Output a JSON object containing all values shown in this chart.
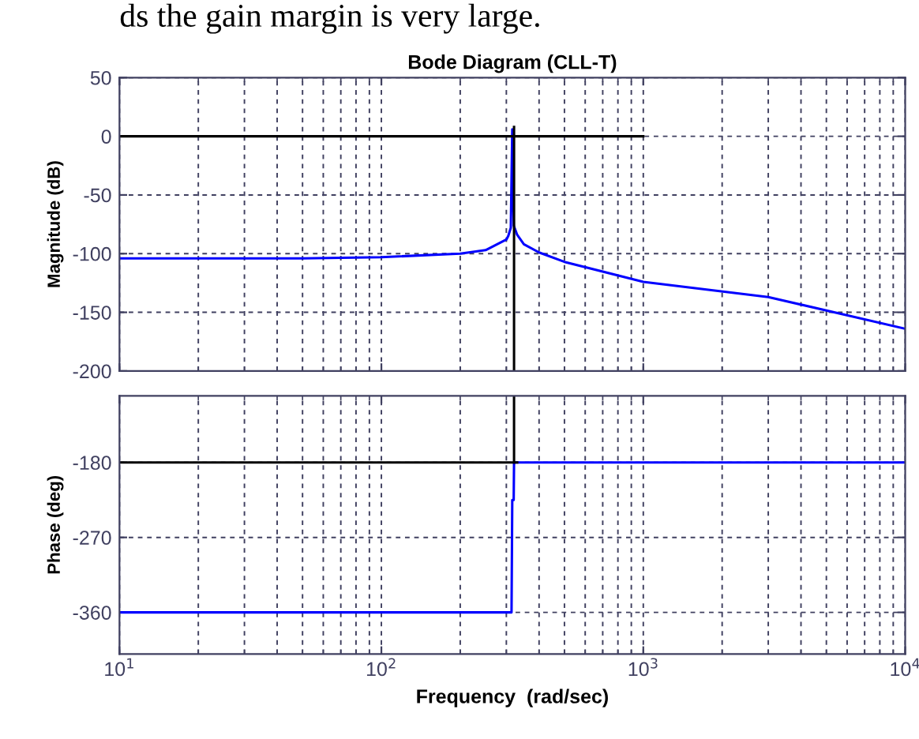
{
  "chart_data": [
    {
      "type": "line",
      "title": "Bode Diagram (CLL-T)",
      "ylabel": "Magnitude (dB)",
      "annotations": [
        "ds the gain margin is very large."
      ],
      "log": "x",
      "grid": true,
      "line_style": "solid",
      "marker": "none",
      "tick_labels": "y",
      "xlim": [
        10,
        10000
      ],
      "ylim": [
        -200,
        50
      ],
      "yticks": [
        -200,
        -150,
        -100,
        -50,
        0,
        50
      ],
      "series": [
        {
          "color": "#0000ff",
          "x": [
            10,
            50,
            100,
            200,
            250,
            300,
            305,
            312,
            316,
            320,
            330,
            350,
            400,
            500,
            1000,
            3000,
            10000
          ],
          "values": [
            -104,
            -104,
            -103,
            -100,
            -97,
            -88,
            -85,
            -78,
            6,
            -76,
            -84,
            -92,
            -99,
            -107,
            -124,
            -137,
            -164
          ]
        },
        {
          "color": "#000000",
          "x": [
            10,
            1000
          ],
          "values": [
            0,
            0
          ]
        },
        {
          "color": "#000000",
          "x": [
            321,
            321
          ],
          "values": [
            8,
            -200
          ]
        }
      ]
    },
    {
      "type": "line",
      "ylabel": "Phase (deg)",
      "xlabel": "Frequency  (rad/sec)",
      "log": "x",
      "grid": true,
      "line_style": "solid",
      "marker": "none",
      "xlim": [
        10,
        10000
      ],
      "ylim": [
        -410,
        -100
      ],
      "yticks": [
        -360,
        -270,
        -180
      ],
      "xticks": [
        {
          "value": 10,
          "label": "10$^{1}$"
        },
        {
          "value": 100,
          "label": "10$^{2}$"
        },
        {
          "value": 1000,
          "label": "10$^{3}$"
        },
        {
          "value": 10000,
          "label": "10$^{4}$"
        }
      ],
      "series": [
        {
          "color": "#0000ff",
          "x": [
            10,
            314,
            316,
            320,
            321,
            10000
          ],
          "values": [
            -360,
            -360,
            -225,
            -225,
            -180,
            -180
          ]
        },
        {
          "color": "#000000",
          "x": [
            10,
            330
          ],
          "values": [
            -180,
            -180
          ]
        },
        {
          "color": "#000000",
          "x": [
            321,
            321
          ],
          "values": [
            -100,
            -180
          ]
        }
      ]
    }
  ]
}
